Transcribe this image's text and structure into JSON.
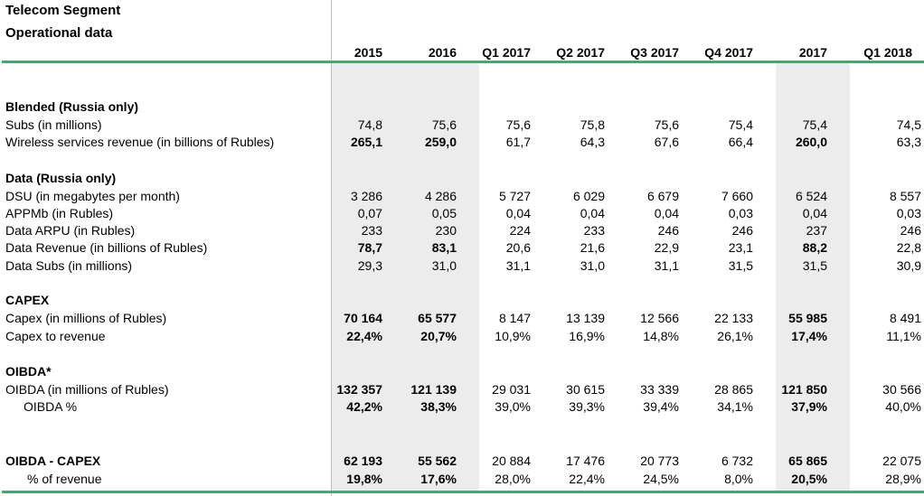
{
  "title": {
    "line1": "Telecom Segment",
    "line2": "Operational data"
  },
  "columns": [
    "2015",
    "2016",
    "Q1 2017",
    "Q2 2017",
    "Q3 2017",
    "Q4 2017",
    "2017",
    "Q1 2018"
  ],
  "sections": [
    {
      "title": "Blended (Russia only)",
      "rows": [
        {
          "label": "Subs (in millions)",
          "bold": false,
          "values": [
            "74,8",
            "75,6",
            "75,6",
            "75,8",
            "75,6",
            "75,4",
            "75,4",
            "74,5"
          ]
        },
        {
          "label": "Wireless services revenue (in billions of Rubles)",
          "bold": true,
          "values": [
            "265,1",
            "259,0",
            "61,7",
            "64,3",
            "67,6",
            "66,4",
            "260,0",
            "63,3"
          ]
        }
      ]
    },
    {
      "title": "Data (Russia only)",
      "rows": [
        {
          "label": "DSU (in megabytes per month)",
          "bold": false,
          "values": [
            "3 286",
            "4 286",
            "5 727",
            "6 029",
            "6 679",
            "7 660",
            "6 524",
            "8 557"
          ]
        },
        {
          "label": "APPMb (in Rubles)",
          "bold": false,
          "values": [
            "0,07",
            "0,05",
            "0,04",
            "0,04",
            "0,04",
            "0,03",
            "0,04",
            "0,03"
          ]
        },
        {
          "label": "Data ARPU (in Rubles)",
          "bold": false,
          "values": [
            "233",
            "230",
            "224",
            "233",
            "246",
            "246",
            "237",
            "246"
          ]
        },
        {
          "label": "Data Revenue (in billions of Rubles)",
          "bold": true,
          "values": [
            "78,7",
            "83,1",
            "20,6",
            "21,6",
            "22,9",
            "23,1",
            "88,2",
            "22,8"
          ]
        },
        {
          "label": "Data Subs (in millions)",
          "bold": false,
          "values": [
            "29,3",
            "31,0",
            "31,1",
            "31,0",
            "31,1",
            "31,5",
            "31,5",
            "30,9"
          ]
        }
      ]
    },
    {
      "title": "CAPEX",
      "rows": [
        {
          "label": "Capex (in millions of Rubles)",
          "bold": false,
          "values": [
            "70 164",
            "65 577",
            "8 147",
            "13 139",
            "12 566",
            "22 133",
            "55 985",
            "8 491"
          ]
        },
        {
          "label": "Capex to revenue",
          "bold": false,
          "values": [
            "22,4%",
            "20,7%",
            "10,9%",
            "16,9%",
            "14,8%",
            "26,1%",
            "17,4%",
            "11,1%"
          ]
        }
      ]
    },
    {
      "title": "OIBDA*",
      "rows": [
        {
          "label": "OIBDA (in millions of Rubles)",
          "bold": false,
          "values": [
            "132 357",
            "121 139",
            "29 031",
            "30 615",
            "33 339",
            "28 865",
            "121 850",
            "30 566"
          ]
        },
        {
          "label": "OIBDA %",
          "bold": false,
          "values": [
            "42,2%",
            "38,3%",
            "39,0%",
            "39,3%",
            "39,4%",
            "34,1%",
            "37,9%",
            "40,0%"
          ]
        }
      ]
    },
    {
      "title": "OIBDA - CAPEX",
      "rows": [
        {
          "label": "OIBDA - CAPEX",
          "bold": false,
          "values": [
            "62 193",
            "55 562",
            "20 884",
            "17 476",
            "20 773",
            "6 732",
            "65 865",
            "22 075"
          ]
        },
        {
          "label": "% of revenue",
          "bold": false,
          "values": [
            "19,8%",
            "17,6%",
            "28,0%",
            "22,4%",
            "24,5%",
            "8,0%",
            "20,5%",
            "28,9%"
          ]
        }
      ]
    }
  ]
}
